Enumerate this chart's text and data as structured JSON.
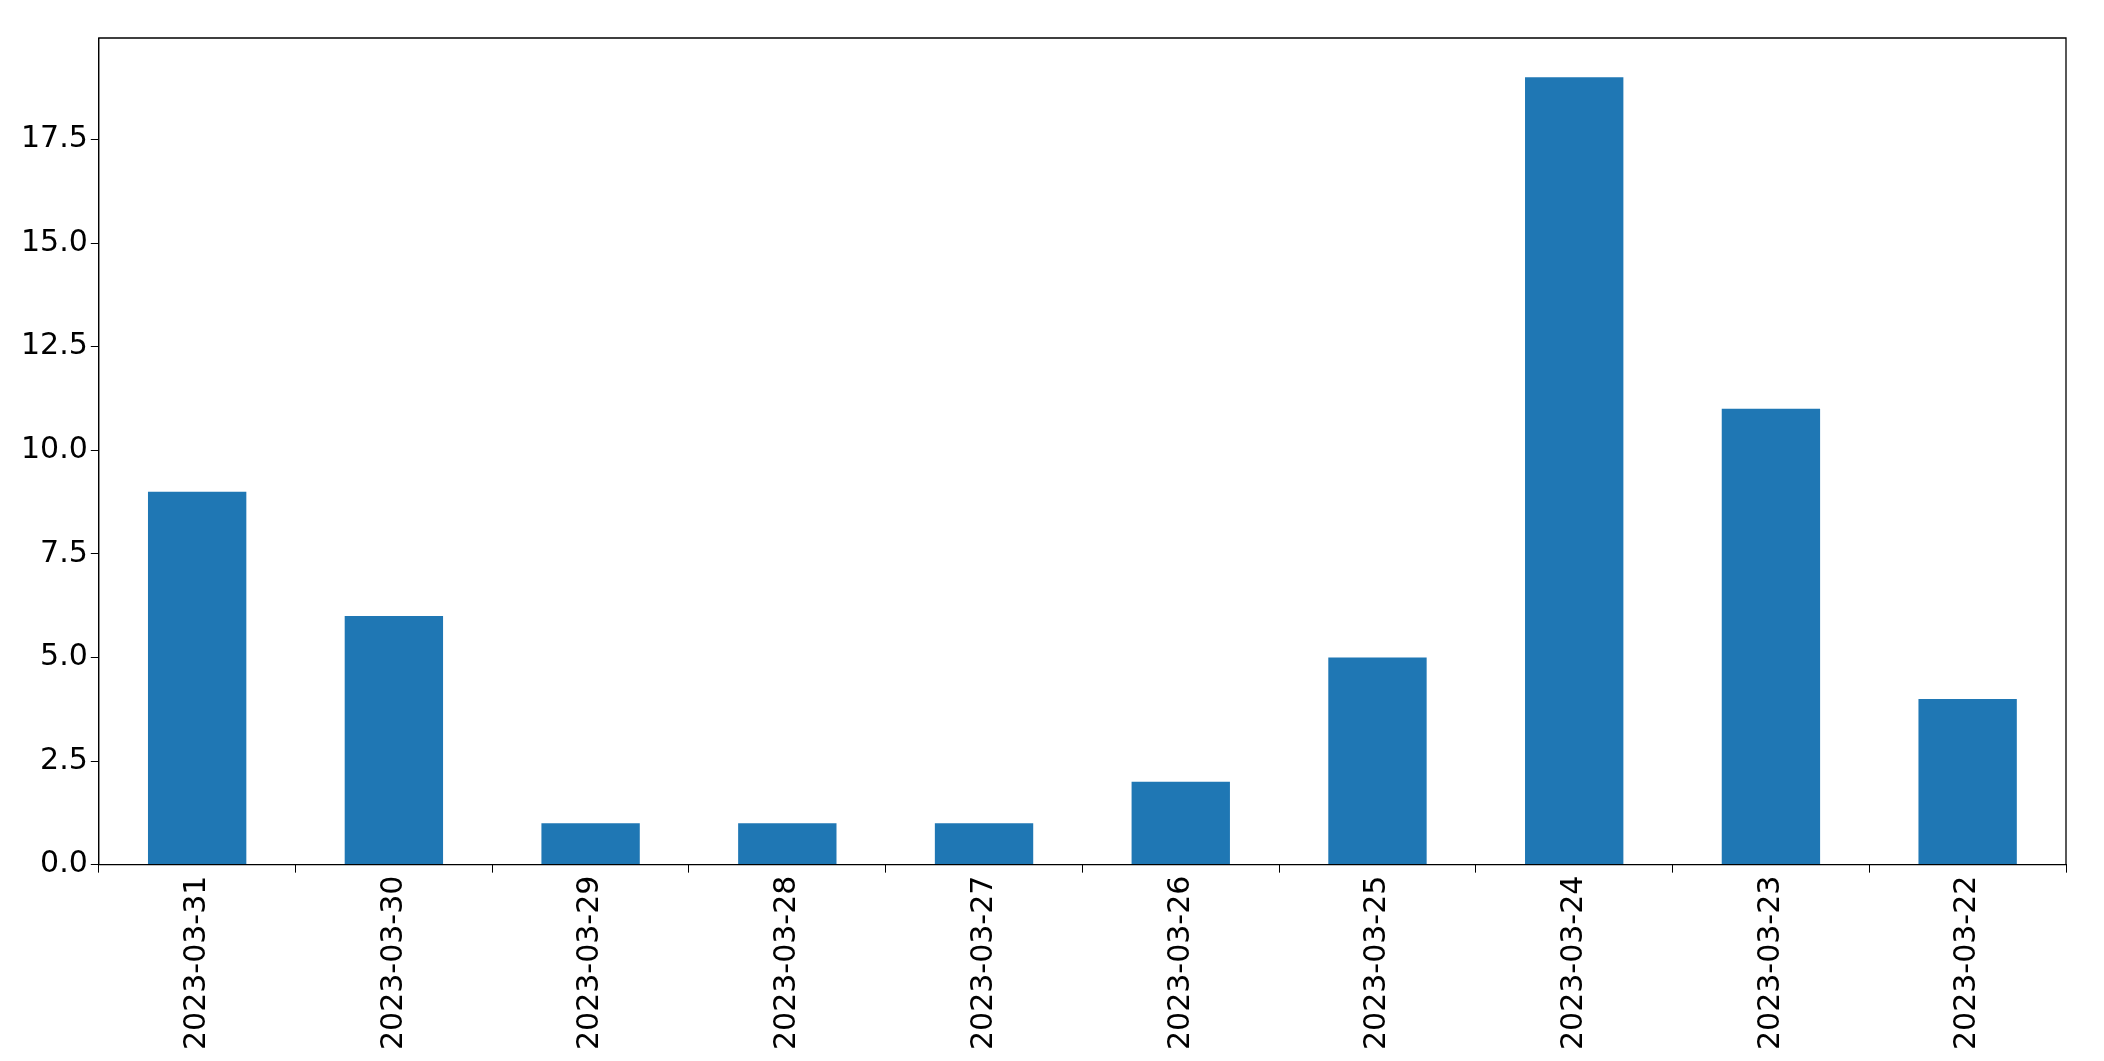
{
  "chart_data": {
    "type": "bar",
    "categories": [
      "2023-03-31",
      "2023-03-30",
      "2023-03-29",
      "2023-03-28",
      "2023-03-27",
      "2023-03-26",
      "2023-03-25",
      "2023-03-24",
      "2023-03-23",
      "2023-03-22"
    ],
    "values": [
      9,
      6,
      1,
      1,
      1,
      2,
      5,
      19,
      11,
      4
    ],
    "color": "#1f77b4",
    "ylim": [
      0,
      19.95
    ],
    "yticks": [
      {
        "value": 0,
        "label": "0.0"
      },
      {
        "value": 2.5,
        "label": "2.5"
      },
      {
        "value": 5,
        "label": "5.0"
      },
      {
        "value": 7.5,
        "label": "7.5"
      },
      {
        "value": 10,
        "label": "10.0"
      },
      {
        "value": 12.5,
        "label": "12.5"
      },
      {
        "value": 15,
        "label": "15.0"
      },
      {
        "value": 17.5,
        "label": "17.5"
      }
    ]
  }
}
